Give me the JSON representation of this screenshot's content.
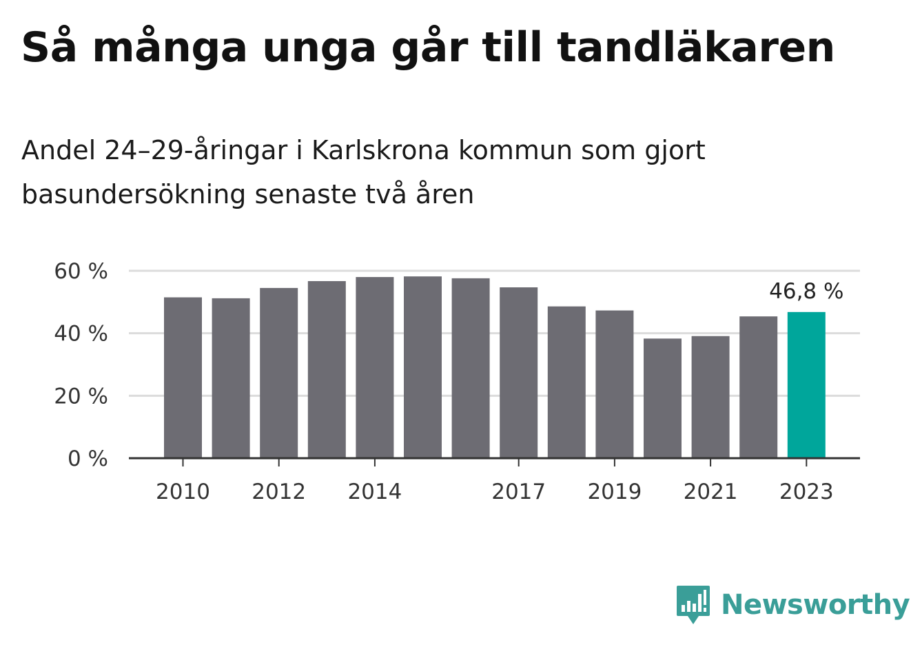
{
  "title": "Så många unga går till tandläkaren",
  "subtitle": "Andel 24–29-åringar i Karlskrona kommun som gjort basundersökning senaste två åren",
  "colors": {
    "bar": "#6d6c73",
    "highlight": "#00a69b",
    "grid": "#dcdcdc",
    "axis": "#333333",
    "brand": "#3a9e98"
  },
  "logo": {
    "text": "Newsworthy",
    "icon": "bar-chart-speech-bubble-icon"
  },
  "chart_data": {
    "type": "bar",
    "title": "Så många unga går till tandläkaren",
    "subtitle": "Andel 24–29-åringar i Karlskrona kommun som gjort basundersökning senaste två åren",
    "xlabel": "",
    "ylabel": "",
    "unit": "%",
    "categories": [
      "2010",
      "2011",
      "2012",
      "2013",
      "2014",
      "2015",
      "2016",
      "2017",
      "2018",
      "2019",
      "2020",
      "2021",
      "2022",
      "2023"
    ],
    "x_tick_labels": [
      "2010",
      "2012",
      "2014",
      "2017",
      "2019",
      "2021",
      "2023"
    ],
    "values": [
      51.5,
      51.2,
      54.5,
      56.7,
      58.0,
      58.2,
      57.6,
      54.7,
      48.6,
      47.3,
      38.3,
      39.1,
      45.4,
      46.8
    ],
    "highlight_index": 13,
    "ylim": [
      0,
      60
    ],
    "yticks": [
      0,
      20,
      40,
      60
    ],
    "ytick_labels": [
      "0 %",
      "20 %",
      "40 %",
      "60 %"
    ],
    "data_labels": [
      {
        "category": "2023",
        "text": "46,8 %"
      }
    ],
    "grid": true,
    "legend": "none"
  }
}
